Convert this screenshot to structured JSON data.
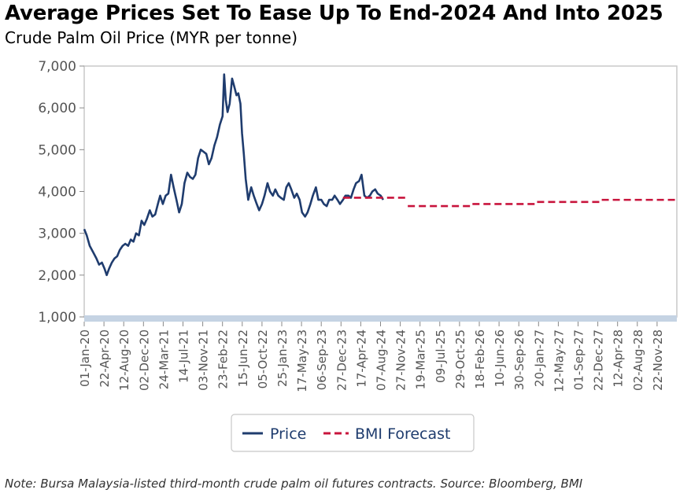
{
  "header": {
    "title": "Average Prices Set To Ease Up To End-2024 And Into 2025",
    "subtitle": "Crude Palm Oil Price (MYR per tonne)"
  },
  "footer": {
    "note": "Note: Bursa Malaysia-listed third-month crude palm oil futures contracts. Source: Bloomberg, BMI"
  },
  "colors": {
    "price": "#1f3c6e",
    "forecast": "#c8143c",
    "axis": "#c5d3e3",
    "frame": "#c8c8c8"
  },
  "chart_data": {
    "type": "line",
    "title": "Average Prices Set To Ease Up To End-2024 And Into 2025",
    "subtitle": "Crude Palm Oil Price (MYR per tonne)",
    "ylim": [
      1000,
      7000
    ],
    "xlim": [
      "2020-01-01",
      "2029-02-28"
    ],
    "yticks": [
      "1,000",
      "2,000",
      "3,000",
      "4,000",
      "5,000",
      "6,000",
      "7,000"
    ],
    "xticks": [
      "01-Jan-20",
      "22-Apr-20",
      "12-Aug-20",
      "02-Dec-20",
      "24-Mar-21",
      "14-Jul-21",
      "03-Nov-21",
      "23-Feb-22",
      "15-Jun-22",
      "05-Oct-22",
      "25-Jan-23",
      "17-May-23",
      "06-Sep-23",
      "27-Dec-23",
      "17-Apr-24",
      "07-Aug-24",
      "27-Nov-24",
      "19-Mar-25",
      "09-Jul-25",
      "29-Oct-25",
      "18-Feb-26",
      "10-Jun-26",
      "30-Sep-26",
      "20-Jan-27",
      "12-May-27",
      "01-Sep-27",
      "22-Dec-27",
      "12-Apr-28",
      "02-Aug-28",
      "22-Nov-28"
    ],
    "legend": {
      "position": "bottom",
      "entries": [
        "Price",
        "BMI Forecast"
      ]
    },
    "series": [
      {
        "name": "Price",
        "style": "solid",
        "points": [
          [
            "2020-01-01",
            3100
          ],
          [
            "2020-01-15",
            2950
          ],
          [
            "2020-02-01",
            2700
          ],
          [
            "2020-02-20",
            2550
          ],
          [
            "2020-03-10",
            2400
          ],
          [
            "2020-03-25",
            2250
          ],
          [
            "2020-04-10",
            2300
          ],
          [
            "2020-04-25",
            2150
          ],
          [
            "2020-05-07",
            2000
          ],
          [
            "2020-05-20",
            2150
          ],
          [
            "2020-06-05",
            2300
          ],
          [
            "2020-06-20",
            2400
          ],
          [
            "2020-07-05",
            2450
          ],
          [
            "2020-07-20",
            2600
          ],
          [
            "2020-08-05",
            2700
          ],
          [
            "2020-08-20",
            2750
          ],
          [
            "2020-09-05",
            2700
          ],
          [
            "2020-09-20",
            2850
          ],
          [
            "2020-10-05",
            2800
          ],
          [
            "2020-10-20",
            3000
          ],
          [
            "2020-11-05",
            2950
          ],
          [
            "2020-11-20",
            3300
          ],
          [
            "2020-12-05",
            3200
          ],
          [
            "2020-12-20",
            3350
          ],
          [
            "2021-01-05",
            3550
          ],
          [
            "2021-01-20",
            3400
          ],
          [
            "2021-02-05",
            3450
          ],
          [
            "2021-02-20",
            3700
          ],
          [
            "2021-03-05",
            3900
          ],
          [
            "2021-03-20",
            3700
          ],
          [
            "2021-04-05",
            3900
          ],
          [
            "2021-04-20",
            3950
          ],
          [
            "2021-05-05",
            4400
          ],
          [
            "2021-05-20",
            4100
          ],
          [
            "2021-06-05",
            3800
          ],
          [
            "2021-06-20",
            3500
          ],
          [
            "2021-07-05",
            3700
          ],
          [
            "2021-07-20",
            4200
          ],
          [
            "2021-08-05",
            4450
          ],
          [
            "2021-08-20",
            4350
          ],
          [
            "2021-09-05",
            4300
          ],
          [
            "2021-09-20",
            4400
          ],
          [
            "2021-10-05",
            4800
          ],
          [
            "2021-10-20",
            5000
          ],
          [
            "2021-11-05",
            4950
          ],
          [
            "2021-11-20",
            4900
          ],
          [
            "2021-12-05",
            4650
          ],
          [
            "2021-12-20",
            4800
          ],
          [
            "2022-01-05",
            5100
          ],
          [
            "2022-01-20",
            5300
          ],
          [
            "2022-02-05",
            5600
          ],
          [
            "2022-02-20",
            5800
          ],
          [
            "2022-03-01",
            6800
          ],
          [
            "2022-03-10",
            6200
          ],
          [
            "2022-03-20",
            5900
          ],
          [
            "2022-04-01",
            6100
          ],
          [
            "2022-04-15",
            6700
          ],
          [
            "2022-04-28",
            6500
          ],
          [
            "2022-05-10",
            6300
          ],
          [
            "2022-05-20",
            6350
          ],
          [
            "2022-06-01",
            6100
          ],
          [
            "2022-06-10",
            5400
          ],
          [
            "2022-06-20",
            4900
          ],
          [
            "2022-07-01",
            4300
          ],
          [
            "2022-07-15",
            3800
          ],
          [
            "2022-08-01",
            4100
          ],
          [
            "2022-08-15",
            3900
          ],
          [
            "2022-09-01",
            3700
          ],
          [
            "2022-09-15",
            3550
          ],
          [
            "2022-10-01",
            3700
          ],
          [
            "2022-10-15",
            3900
          ],
          [
            "2022-11-01",
            4200
          ],
          [
            "2022-11-15",
            4000
          ],
          [
            "2022-12-01",
            3900
          ],
          [
            "2022-12-15",
            4050
          ],
          [
            "2023-01-01",
            3900
          ],
          [
            "2023-01-15",
            3850
          ],
          [
            "2023-02-01",
            3800
          ],
          [
            "2023-02-15",
            4100
          ],
          [
            "2023-03-01",
            4200
          ],
          [
            "2023-03-15",
            4050
          ],
          [
            "2023-04-01",
            3850
          ],
          [
            "2023-04-15",
            3950
          ],
          [
            "2023-05-01",
            3800
          ],
          [
            "2023-05-15",
            3500
          ],
          [
            "2023-06-01",
            3400
          ],
          [
            "2023-06-15",
            3500
          ],
          [
            "2023-07-01",
            3700
          ],
          [
            "2023-07-15",
            3900
          ],
          [
            "2023-08-01",
            4100
          ],
          [
            "2023-08-15",
            3800
          ],
          [
            "2023-09-01",
            3800
          ],
          [
            "2023-09-15",
            3700
          ],
          [
            "2023-10-01",
            3650
          ],
          [
            "2023-10-15",
            3800
          ],
          [
            "2023-11-01",
            3800
          ],
          [
            "2023-11-15",
            3900
          ],
          [
            "2023-12-01",
            3800
          ],
          [
            "2023-12-15",
            3700
          ],
          [
            "2024-01-01",
            3800
          ],
          [
            "2024-01-15",
            3900
          ],
          [
            "2024-02-01",
            3900
          ],
          [
            "2024-02-15",
            3850
          ],
          [
            "2024-03-01",
            4050
          ],
          [
            "2024-03-15",
            4200
          ],
          [
            "2024-04-01",
            4250
          ],
          [
            "2024-04-15",
            4400
          ],
          [
            "2024-05-01",
            3900
          ],
          [
            "2024-05-15",
            3850
          ],
          [
            "2024-06-01",
            3900
          ],
          [
            "2024-06-15",
            4000
          ],
          [
            "2024-07-01",
            4050
          ],
          [
            "2024-07-15",
            3950
          ],
          [
            "2024-08-01",
            3900
          ],
          [
            "2024-08-15",
            3800
          ]
        ]
      },
      {
        "name": "BMI Forecast",
        "style": "dashed",
        "segments": [
          {
            "from": "2024-01-01",
            "to": "2024-12-31",
            "value": 3850
          },
          {
            "from": "2025-01-01",
            "to": "2025-12-31",
            "value": 3650
          },
          {
            "from": "2026-01-01",
            "to": "2026-12-31",
            "value": 3700
          },
          {
            "from": "2027-01-01",
            "to": "2027-12-31",
            "value": 3750
          },
          {
            "from": "2028-01-01",
            "to": "2029-02-28",
            "value": 3800
          }
        ]
      }
    ]
  }
}
